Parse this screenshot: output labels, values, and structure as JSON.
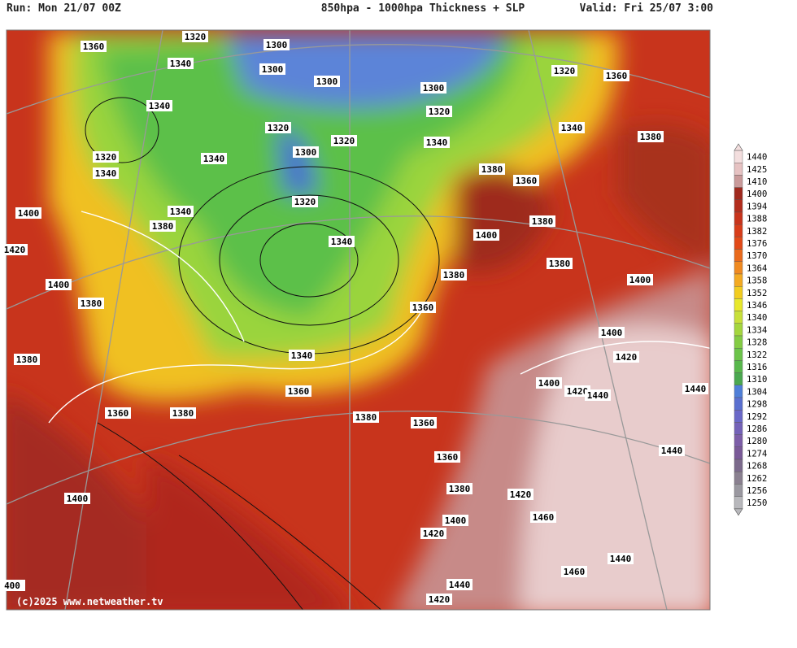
{
  "header": {
    "run": "Run: Mon 21/07 00Z",
    "title": "850hpa - 1000hpa Thickness + SLP",
    "valid": "Valid: Fri 25/07 3:00"
  },
  "legend": {
    "labels": [
      "1440",
      "1425",
      "1410",
      "1400",
      "1394",
      "1388",
      "1382",
      "1376",
      "1370",
      "1364",
      "1358",
      "1352",
      "1346",
      "1340",
      "1334",
      "1328",
      "1322",
      "1316",
      "1310",
      "1304",
      "1298",
      "1292",
      "1286",
      "1280",
      "1274",
      "1268",
      "1262",
      "1256",
      "1250"
    ]
  },
  "contour_labels": [
    "1320",
    "1300",
    "1360",
    "1340",
    "1300",
    "1300",
    "1320",
    "1360",
    "1300",
    "1340",
    "1320",
    "1340",
    "1320",
    "1320",
    "1340",
    "1380",
    "1300",
    "1320",
    "1340",
    "1340",
    "1380",
    "1360",
    "1320",
    "1340",
    "1400",
    "1380",
    "1380",
    "1400",
    "1340",
    "1420",
    "1380",
    "1380",
    "1400",
    "1400",
    "1360",
    "1380",
    "1400",
    "1340",
    "1420",
    "1380",
    "1360",
    "1400",
    "1420",
    "1440",
    "1440",
    "1360",
    "1380",
    "1380",
    "1360",
    "1440",
    "1360",
    "1380",
    "1400",
    "1420",
    "1460",
    "1400",
    "1420",
    "1440",
    "1460",
    "1440",
    "1420",
    "400"
  ],
  "copyright": "(c)2025 www.netweather.tv"
}
